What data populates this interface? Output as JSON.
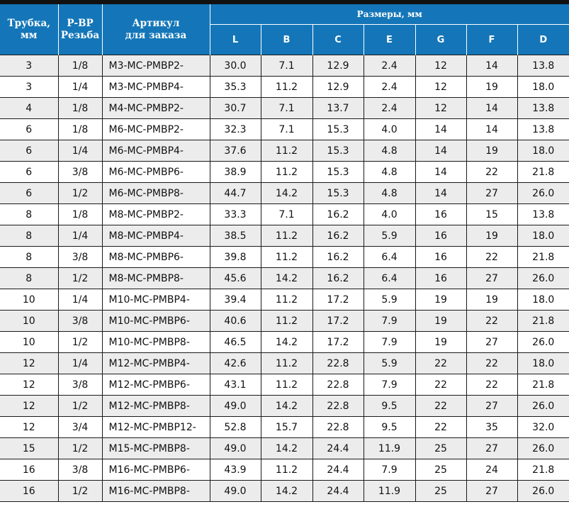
{
  "header": {
    "tube_line1": "Трубка,",
    "tube_line2": "мм",
    "thread_line1": "Р-ВР",
    "thread_line2": "Резьба",
    "article_line1": "Артикул",
    "article_line2": "для заказа",
    "dimensions_group": "Размеры, мм",
    "dims": [
      "L",
      "B",
      "C",
      "E",
      "G",
      "F",
      "D"
    ]
  },
  "rows": [
    {
      "tube": "3",
      "thread": "1/8",
      "article": "M3-MC-PMBP2-",
      "L": "30.0",
      "B": "7.1",
      "C": "12.9",
      "E": "2.4",
      "G": "12",
      "F": "14",
      "D": "13.8"
    },
    {
      "tube": "3",
      "thread": "1/4",
      "article": "M3-MC-PMBP4-",
      "L": "35.3",
      "B": "11.2",
      "C": "12.9",
      "E": "2.4",
      "G": "12",
      "F": "19",
      "D": "18.0"
    },
    {
      "tube": "4",
      "thread": "1/8",
      "article": "M4-MC-PMBP2-",
      "L": "30.7",
      "B": "7.1",
      "C": "13.7",
      "E": "2.4",
      "G": "12",
      "F": "14",
      "D": "13.8"
    },
    {
      "tube": "6",
      "thread": "1/8",
      "article": "M6-MC-PMBP2-",
      "L": "32.3",
      "B": "7.1",
      "C": "15.3",
      "E": "4.0",
      "G": "14",
      "F": "14",
      "D": "13.8"
    },
    {
      "tube": "6",
      "thread": "1/4",
      "article": "M6-MC-PMBP4-",
      "L": "37.6",
      "B": "11.2",
      "C": "15.3",
      "E": "4.8",
      "G": "14",
      "F": "19",
      "D": "18.0"
    },
    {
      "tube": "6",
      "thread": "3/8",
      "article": "M6-MC-PMBP6-",
      "L": "38.9",
      "B": "11.2",
      "C": "15.3",
      "E": "4.8",
      "G": "14",
      "F": "22",
      "D": "21.8"
    },
    {
      "tube": "6",
      "thread": "1/2",
      "article": "M6-MC-PMBP8-",
      "L": "44.7",
      "B": "14.2",
      "C": "15.3",
      "E": "4.8",
      "G": "14",
      "F": "27",
      "D": "26.0"
    },
    {
      "tube": "8",
      "thread": "1/8",
      "article": "M8-MC-PMBP2-",
      "L": "33.3",
      "B": "7.1",
      "C": "16.2",
      "E": "4.0",
      "G": "16",
      "F": "15",
      "D": "13.8"
    },
    {
      "tube": "8",
      "thread": "1/4",
      "article": "M8-MC-PMBP4-",
      "L": "38.5",
      "B": "11.2",
      "C": "16.2",
      "E": "5.9",
      "G": "16",
      "F": "19",
      "D": "18.0"
    },
    {
      "tube": "8",
      "thread": "3/8",
      "article": "M8-MC-PMBP6-",
      "L": "39.8",
      "B": "11.2",
      "C": "16.2",
      "E": "6.4",
      "G": "16",
      "F": "22",
      "D": "21.8"
    },
    {
      "tube": "8",
      "thread": "1/2",
      "article": "M8-MC-PMBP8-",
      "L": "45.6",
      "B": "14.2",
      "C": "16.2",
      "E": "6.4",
      "G": "16",
      "F": "27",
      "D": "26.0"
    },
    {
      "tube": "10",
      "thread": "1/4",
      "article": "M10-MC-PMBP4-",
      "L": "39.4",
      "B": "11.2",
      "C": "17.2",
      "E": "5.9",
      "G": "19",
      "F": "19",
      "D": "18.0"
    },
    {
      "tube": "10",
      "thread": "3/8",
      "article": "M10-MC-PMBP6-",
      "L": "40.6",
      "B": "11.2",
      "C": "17.2",
      "E": "7.9",
      "G": "19",
      "F": "22",
      "D": "21.8"
    },
    {
      "tube": "10",
      "thread": "1/2",
      "article": "M10-MC-PMBP8-",
      "L": "46.5",
      "B": "14.2",
      "C": "17.2",
      "E": "7.9",
      "G": "19",
      "F": "27",
      "D": "26.0"
    },
    {
      "tube": "12",
      "thread": "1/4",
      "article": "M12-MC-PMBP4-",
      "L": "42.6",
      "B": "11.2",
      "C": "22.8",
      "E": "5.9",
      "G": "22",
      "F": "22",
      "D": "18.0"
    },
    {
      "tube": "12",
      "thread": "3/8",
      "article": "M12-MC-PMBP6-",
      "L": "43.1",
      "B": "11.2",
      "C": "22.8",
      "E": "7.9",
      "G": "22",
      "F": "22",
      "D": "21.8"
    },
    {
      "tube": "12",
      "thread": "1/2",
      "article": "M12-MC-PMBP8-",
      "L": "49.0",
      "B": "14.2",
      "C": "22.8",
      "E": "9.5",
      "G": "22",
      "F": "27",
      "D": "26.0"
    },
    {
      "tube": "12",
      "thread": "3/4",
      "article": "M12-MC-PMBP12-",
      "L": "52.8",
      "B": "15.7",
      "C": "22.8",
      "E": "9.5",
      "G": "22",
      "F": "35",
      "D": "32.0"
    },
    {
      "tube": "15",
      "thread": "1/2",
      "article": "M15-MC-PMBP8-",
      "L": "49.0",
      "B": "14.2",
      "C": "24.4",
      "E": "11.9",
      "G": "25",
      "F": "27",
      "D": "26.0"
    },
    {
      "tube": "16",
      "thread": "3/8",
      "article": "M16-MC-PMBP6-",
      "L": "43.9",
      "B": "11.2",
      "C": "24.4",
      "E": "7.9",
      "G": "25",
      "F": "24",
      "D": "21.8"
    },
    {
      "tube": "16",
      "thread": "1/2",
      "article": "M16-MC-PMBP8-",
      "L": "49.0",
      "B": "14.2",
      "C": "24.4",
      "E": "11.9",
      "G": "25",
      "F": "27",
      "D": "26.0"
    }
  ],
  "colors": {
    "header_bg": "#1476b8",
    "header_text": "#ffffff",
    "shade_row": "#ececec",
    "grid_line": "#1a1a1a",
    "top_bar": "#111111"
  }
}
